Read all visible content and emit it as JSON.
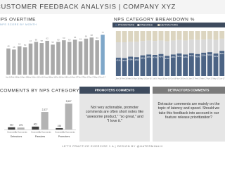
{
  "header": {
    "title": "CUSTOMER FEEDBACK ANALYSIS | COMPANY XYZ"
  },
  "chart_data": [
    {
      "type": "bar",
      "title": "NPS OVERTIME",
      "subtitle": "NPS SCORE BY MONTH",
      "categories": [
        "Jan-16",
        "Feb-16",
        "Mar-16",
        "Apr-16",
        "May-16",
        "Jun-16",
        "Jul-16",
        "Aug-16",
        "Sep-16",
        "Oct-16",
        "Nov-16",
        "Dec-16",
        "Jan-17",
        "Feb-17",
        "Mar-17",
        "Apr-17",
        "May-17",
        "Jun-17"
      ],
      "values": [
        48,
        46,
        52,
        50,
        57,
        60,
        58,
        62,
        55,
        60,
        63,
        60,
        64,
        61,
        66,
        68,
        63,
        73
      ],
      "colors": [
        "#a9a9a9",
        "#a9a9a9",
        "#a9a9a9",
        "#a9a9a9",
        "#a9a9a9",
        "#a9a9a9",
        "#a9a9a9",
        "#a9a9a9",
        "#a9a9a9",
        "#a9a9a9",
        "#a9a9a9",
        "#a9a9a9",
        "#a9a9a9",
        "#a9a9a9",
        "#a9a9a9",
        "#a9a9a9",
        "#a9a9a9",
        "#7fa7c9"
      ],
      "ylim": [
        0,
        80
      ]
    },
    {
      "type": "stacked_bar",
      "title": "NPS CATEGORY BREAKDOWN %",
      "categories": [
        "Jan-16",
        "Feb-16",
        "Mar-16",
        "Apr-16",
        "May-16",
        "Jun-16",
        "Jul-16",
        "Aug-16",
        "Sep-16",
        "Oct-16",
        "Nov-16",
        "Dec-16",
        "Jan-17",
        "Feb-17",
        "Mar-17",
        "Apr-17",
        "May-17",
        "Jun-17"
      ],
      "series": [
        {
          "name": "PROMOTERS",
          "color": "#4b6384",
          "values": [
            41,
            40,
            43,
            42,
            46,
            48,
            47,
            49,
            45,
            48,
            50,
            48,
            51,
            49,
            52,
            53,
            50,
            56
          ],
          "value_labels": [
            "41%",
            "40%",
            "43%",
            "42%",
            "46%",
            "48%",
            "47%",
            "49%",
            "45%",
            "48%",
            "50%",
            "48%",
            "51%",
            "49%",
            "52%",
            "53%",
            "50%",
            "56%"
          ]
        },
        {
          "name": "PASSIVES",
          "color": "#d9d9d9",
          "values": [
            34,
            35,
            33,
            34,
            32,
            31,
            31,
            30,
            32,
            31,
            30,
            31,
            30,
            31,
            29,
            29,
            30,
            27
          ]
        },
        {
          "name": "DETRACTORS",
          "color": "#dcd5c0",
          "values": [
            25,
            25,
            24,
            24,
            22,
            21,
            22,
            21,
            23,
            21,
            20,
            21,
            19,
            20,
            19,
            18,
            20,
            17
          ]
        }
      ],
      "ylim": [
        0,
        100
      ]
    },
    {
      "type": "grouped_bar",
      "title": "COMMENTS BY NPS CATEGORY",
      "categories": [
        "Detractors",
        "Passives",
        "Promoters"
      ],
      "series": [
        {
          "name": "Comment",
          "color": "#404040",
          "values": [
            312,
            401,
            195
          ]
        },
        {
          "name": "No Comments",
          "color": "#b3b3b3",
          "values": [
            275,
            2377,
            3507
          ],
          "value_labels": [
            "275",
            "2,377",
            "3,507"
          ]
        }
      ],
      "ylim": [
        0,
        4000
      ]
    }
  ],
  "panels": [
    {
      "title": "PROMOTERS COMMENTS",
      "text": "Not very actionable, promoter comments are often short notes like \"awesome product,\" \"so great,\" and \"I love it.\""
    },
    {
      "title": "DETRACTORS COMMENTS",
      "text": "Detractor comments are mainly on the topic of latency and speed. Should we take this feedback into account in our feature release prioritization?"
    }
  ],
  "footer": {
    "text": "LET'S PRACTICE EXERCISE 1 A | DESIGN BY @HATERMINAIII"
  }
}
